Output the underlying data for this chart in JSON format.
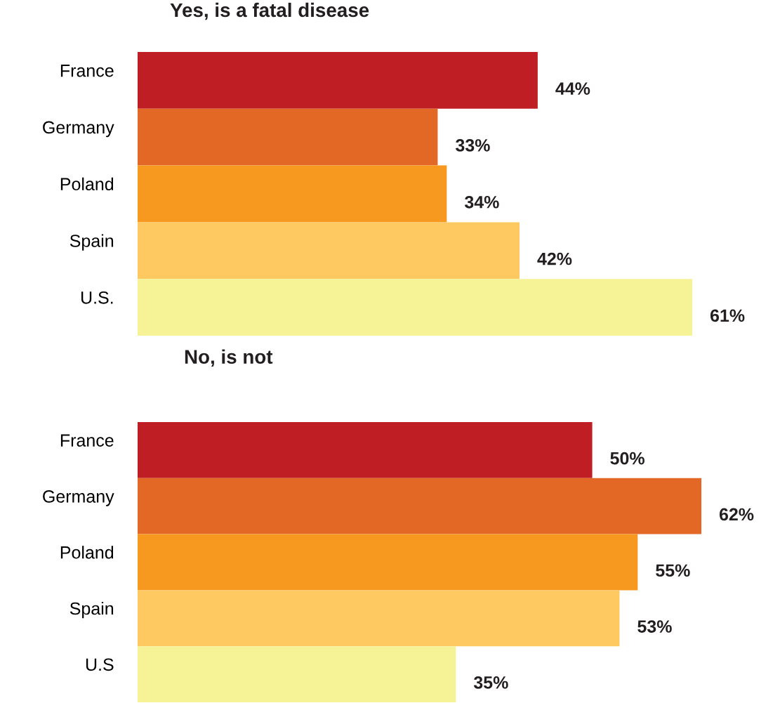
{
  "chart_data": [
    {
      "type": "bar",
      "orientation": "horizontal",
      "title": "Yes, is a fatal disease",
      "categories": [
        "France",
        "Germany",
        "Poland",
        "Spain",
        "U.S."
      ],
      "values": [
        44,
        33,
        34,
        42,
        61
      ],
      "colors": [
        "#be1e24",
        "#e36725",
        "#f7981f",
        "#fdc960",
        "#f6f296"
      ],
      "value_labels": [
        "44%",
        "33%",
        "34%",
        "42%",
        "61%"
      ]
    },
    {
      "type": "bar",
      "orientation": "horizontal",
      "title": "No, is not",
      "categories": [
        "France",
        "Germany",
        "Poland",
        "Spain",
        "U.S"
      ],
      "values": [
        50,
        62,
        55,
        53,
        35
      ],
      "colors": [
        "#be1e24",
        "#e36725",
        "#f7981f",
        "#fdc960",
        "#f6f296"
      ],
      "value_labels": [
        "50%",
        "62%",
        "55%",
        "53%",
        "35%"
      ]
    }
  ]
}
